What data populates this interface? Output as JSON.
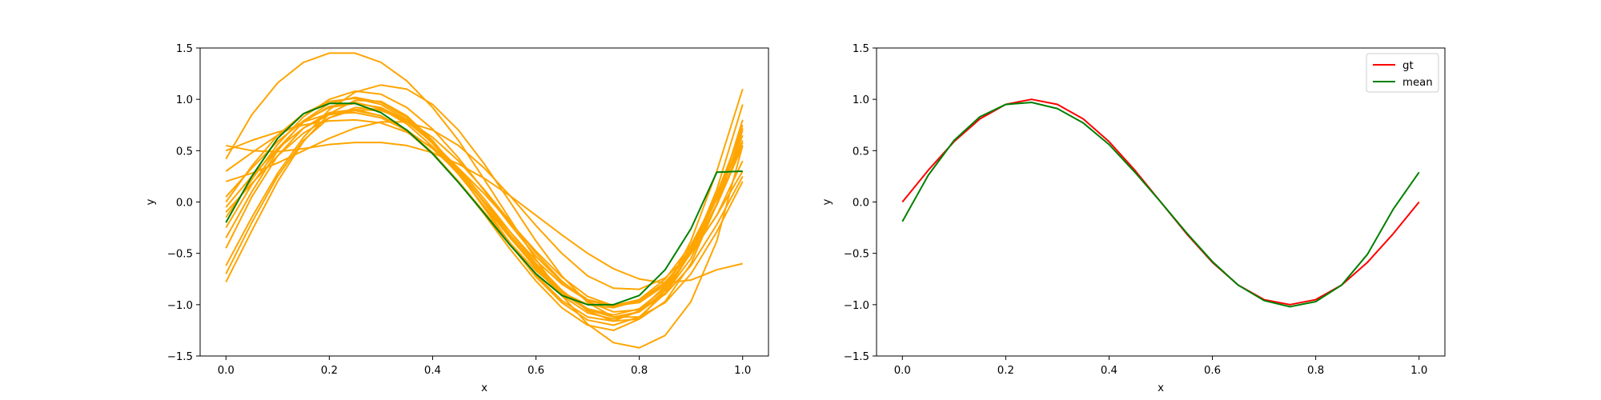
{
  "chart_data": [
    {
      "type": "line",
      "xlabel": "x",
      "ylabel": "y",
      "xlim": [
        -0.05,
        1.05
      ],
      "ylim": [
        -1.5,
        1.5
      ],
      "x_ticks": [
        "0.0",
        "0.2",
        "0.4",
        "0.6",
        "0.8",
        "1.0"
      ],
      "y_ticks": [
        "−1.5",
        "−1.0",
        "−0.5",
        "0.0",
        "0.5",
        "1.0",
        "1.5"
      ],
      "grid": false,
      "sample_color": "#ffa500",
      "mean_color": "#008000",
      "x": [
        0.0,
        0.05,
        0.1,
        0.15,
        0.2,
        0.25,
        0.3,
        0.35,
        0.4,
        0.45,
        0.5,
        0.55,
        0.6,
        0.65,
        0.7,
        0.75,
        0.8,
        0.85,
        0.9,
        0.95,
        1.0
      ],
      "series": [
        {
          "values": [
            0.42,
            0.85,
            1.16,
            1.36,
            1.45,
            1.45,
            1.36,
            1.18,
            0.92,
            0.6,
            0.22,
            -0.17,
            -0.56,
            -0.91,
            -1.19,
            -1.37,
            -1.42,
            -1.3,
            -0.97,
            -0.38,
            0.55
          ]
        },
        {
          "values": [
            0.55,
            0.5,
            0.49,
            0.52,
            0.56,
            0.58,
            0.58,
            0.55,
            0.48,
            0.37,
            0.23,
            0.06,
            -0.13,
            -0.32,
            -0.5,
            -0.65,
            -0.75,
            -0.79,
            -0.76,
            -0.66,
            -0.6
          ]
        },
        {
          "values": [
            -0.78,
            -0.28,
            0.2,
            0.59,
            0.86,
            0.99,
            0.98,
            0.84,
            0.6,
            0.29,
            -0.06,
            -0.41,
            -0.73,
            -0.98,
            -1.15,
            -1.2,
            -1.12,
            -0.89,
            -0.49,
            0.12,
            0.95
          ]
        },
        {
          "values": [
            0.2,
            0.28,
            0.38,
            0.5,
            0.62,
            0.72,
            0.78,
            0.78,
            0.7,
            0.55,
            0.33,
            0.06,
            -0.23,
            -0.5,
            -0.72,
            -0.84,
            -0.85,
            -0.74,
            -0.5,
            -0.13,
            0.4
          ]
        },
        {
          "values": [
            -0.62,
            -0.15,
            0.28,
            0.63,
            0.9,
            1.07,
            1.14,
            1.1,
            0.95,
            0.7,
            0.37,
            0.0,
            -0.38,
            -0.72,
            -0.98,
            -1.12,
            -1.12,
            -0.98,
            -0.7,
            -0.29,
            0.2
          ]
        },
        {
          "values": [
            0.0,
            0.35,
            0.65,
            0.86,
            0.98,
            1.01,
            0.95,
            0.8,
            0.57,
            0.28,
            -0.05,
            -0.4,
            -0.71,
            -0.96,
            -1.12,
            -1.16,
            -1.06,
            -0.82,
            -0.44,
            0.08,
            0.72
          ]
        },
        {
          "values": [
            -0.45,
            0.05,
            0.45,
            0.72,
            0.87,
            0.9,
            0.84,
            0.69,
            0.47,
            0.2,
            -0.1,
            -0.4,
            -0.67,
            -0.88,
            -1.0,
            -1.03,
            -0.96,
            -0.78,
            -0.5,
            -0.13,
            0.3
          ]
        },
        {
          "values": [
            0.5,
            0.6,
            0.68,
            0.75,
            0.79,
            0.8,
            0.77,
            0.68,
            0.53,
            0.33,
            0.08,
            -0.2,
            -0.48,
            -0.73,
            -0.92,
            -1.01,
            -0.98,
            -0.81,
            -0.47,
            0.05,
            0.75
          ]
        },
        {
          "values": [
            -0.25,
            0.17,
            0.52,
            0.78,
            0.93,
            0.97,
            0.91,
            0.76,
            0.54,
            0.27,
            -0.04,
            -0.35,
            -0.64,
            -0.89,
            -1.05,
            -1.12,
            -1.07,
            -0.89,
            -0.55,
            -0.02,
            0.7
          ]
        },
        {
          "values": [
            -0.05,
            0.25,
            0.52,
            0.72,
            0.85,
            0.89,
            0.84,
            0.7,
            0.48,
            0.2,
            -0.12,
            -0.46,
            -0.77,
            -1.03,
            -1.2,
            -1.25,
            -1.14,
            -0.86,
            -0.38,
            0.3,
            1.1
          ]
        },
        {
          "values": [
            -0.15,
            0.22,
            0.56,
            0.83,
            1.0,
            1.08,
            1.05,
            0.92,
            0.71,
            0.43,
            0.11,
            -0.22,
            -0.53,
            -0.78,
            -0.95,
            -1.01,
            -0.95,
            -0.75,
            -0.42,
            0.05,
            0.6
          ]
        },
        {
          "values": [
            0.3,
            0.48,
            0.65,
            0.78,
            0.86,
            0.87,
            0.82,
            0.7,
            0.52,
            0.28,
            0.0,
            -0.29,
            -0.57,
            -0.8,
            -0.96,
            -1.02,
            -0.97,
            -0.79,
            -0.48,
            -0.03,
            0.55
          ]
        },
        {
          "values": [
            -0.35,
            0.1,
            0.5,
            0.79,
            0.96,
            1.02,
            0.97,
            0.82,
            0.59,
            0.31,
            -0.01,
            -0.34,
            -0.65,
            -0.91,
            -1.08,
            -1.14,
            -1.07,
            -0.86,
            -0.49,
            0.03,
            0.65
          ]
        },
        {
          "values": [
            0.05,
            0.33,
            0.59,
            0.79,
            0.92,
            0.96,
            0.92,
            0.79,
            0.58,
            0.31,
            0.0,
            -0.32,
            -0.62,
            -0.87,
            -1.04,
            -1.1,
            -1.04,
            -0.84,
            -0.5,
            -0.02,
            0.58
          ]
        },
        {
          "values": [
            -0.7,
            -0.2,
            0.25,
            0.6,
            0.82,
            0.92,
            0.9,
            0.78,
            0.58,
            0.33,
            0.03,
            -0.29,
            -0.6,
            -0.86,
            -1.06,
            -1.16,
            -1.14,
            -0.97,
            -0.6,
            -0.02,
            0.8
          ]
        },
        {
          "values": [
            -0.1,
            0.18,
            0.45,
            0.67,
            0.82,
            0.9,
            0.89,
            0.8,
            0.63,
            0.4,
            0.12,
            -0.19,
            -0.5,
            -0.77,
            -0.97,
            -1.07,
            -1.05,
            -0.9,
            -0.62,
            -0.22,
            0.25
          ]
        }
      ],
      "mean": [
        -0.2,
        0.25,
        0.62,
        0.86,
        0.96,
        0.96,
        0.87,
        0.7,
        0.47,
        0.19,
        -0.11,
        -0.42,
        -0.7,
        -0.91,
        -1.0,
        -1.0,
        -0.91,
        -0.66,
        -0.26,
        0.29,
        0.3
      ]
    },
    {
      "type": "line",
      "xlabel": "x",
      "ylabel": "y",
      "xlim": [
        -0.05,
        1.05
      ],
      "ylim": [
        -1.5,
        1.5
      ],
      "x_ticks": [
        "0.0",
        "0.2",
        "0.4",
        "0.6",
        "0.8",
        "1.0"
      ],
      "y_ticks": [
        "−1.5",
        "−1.0",
        "−0.5",
        "0.0",
        "0.5",
        "1.0",
        "1.5"
      ],
      "grid": false,
      "legend_placement": "upper right",
      "x": [
        0.0,
        0.05,
        0.1,
        0.15,
        0.2,
        0.25,
        0.3,
        0.35,
        0.4,
        0.45,
        0.5,
        0.55,
        0.6,
        0.65,
        0.7,
        0.75,
        0.8,
        0.85,
        0.9,
        0.95,
        1.0
      ],
      "series": [
        {
          "name": "gt",
          "color": "#ff0000",
          "values": [
            0.0,
            0.309,
            0.588,
            0.809,
            0.951,
            1.0,
            0.951,
            0.809,
            0.588,
            0.309,
            0.0,
            -0.309,
            -0.588,
            -0.809,
            -0.951,
            -1.0,
            -0.951,
            -0.809,
            -0.588,
            -0.309,
            0.0
          ]
        },
        {
          "name": "mean",
          "color": "#008000",
          "values": [
            -0.19,
            0.26,
            0.6,
            0.83,
            0.95,
            0.97,
            0.91,
            0.77,
            0.56,
            0.29,
            0.0,
            -0.3,
            -0.58,
            -0.81,
            -0.96,
            -1.02,
            -0.97,
            -0.81,
            -0.51,
            -0.07,
            0.29
          ]
        }
      ]
    }
  ]
}
